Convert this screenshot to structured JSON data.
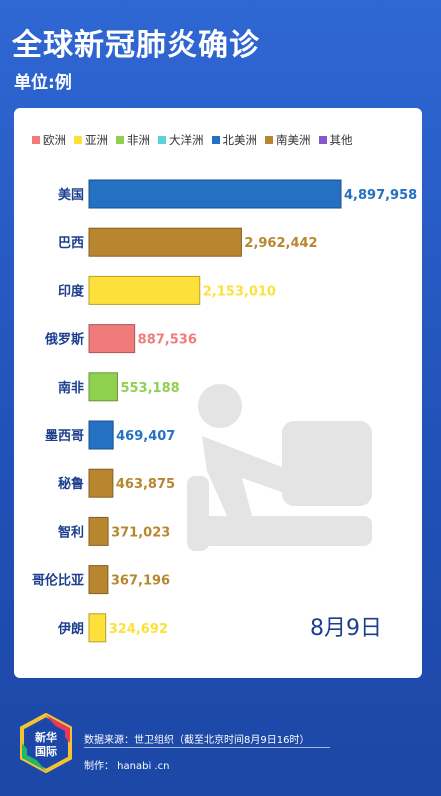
{
  "header": {
    "title": "全球新冠肺炎确诊",
    "unit": "单位:例"
  },
  "legend": [
    {
      "label": "欧洲",
      "color": "#f07b7b"
    },
    {
      "label": "亚洲",
      "color": "#fde03a"
    },
    {
      "label": "非洲",
      "color": "#8fd14f"
    },
    {
      "label": "大洋洲",
      "color": "#5ad3dd"
    },
    {
      "label": "北美洲",
      "color": "#2470c2"
    },
    {
      "label": "南美洲",
      "color": "#b8862e"
    },
    {
      "label": "其他",
      "color": "#8758c9"
    }
  ],
  "chart_data": {
    "type": "bar",
    "orientation": "horizontal",
    "categories": [
      "美国",
      "巴西",
      "印度",
      "俄罗斯",
      "南非",
      "墨西哥",
      "秘鲁",
      "智利",
      "哥伦比亚",
      "伊朗"
    ],
    "values": [
      4897958,
      2962442,
      2153010,
      887536,
      553188,
      469407,
      463875,
      371023,
      367196,
      324692
    ],
    "value_labels": [
      "4,897,958",
      "2,962,442",
      "2,153,010",
      "887,536",
      "553,188",
      "469,407",
      "463,875",
      "371,023",
      "367,196",
      "324,692"
    ],
    "regions": [
      "北美洲",
      "南美洲",
      "亚洲",
      "欧洲",
      "非洲",
      "北美洲",
      "南美洲",
      "南美洲",
      "南美洲",
      "亚洲"
    ]
  },
  "date_label": "8月9日",
  "footer": {
    "logo_text": "新华国际",
    "source": "数据来源：世卫组织（截至北京时间8月9日16时）",
    "maker": "制作： hanabi .cn"
  }
}
